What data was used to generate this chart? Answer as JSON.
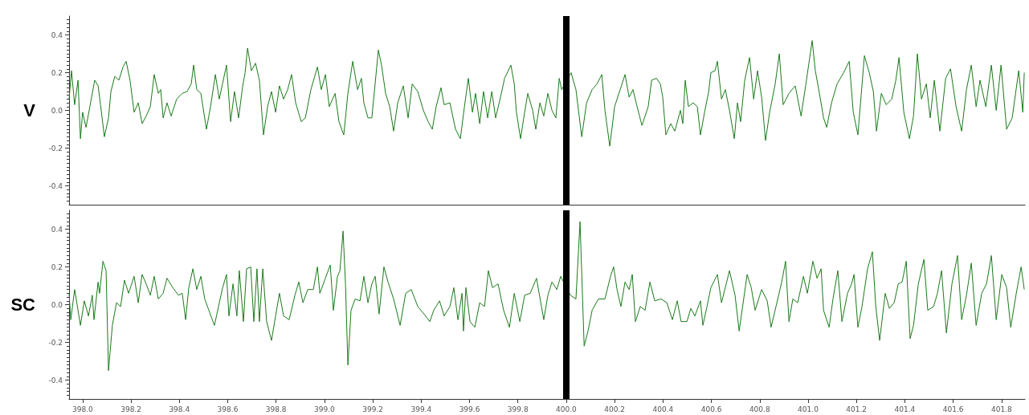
{
  "chart_data": [
    {
      "type": "line",
      "ylabel": "V",
      "tick_labels": "y",
      "xlim": [
        397.944,
        401.897
      ],
      "ylim": [
        -0.5,
        0.5
      ],
      "yticks": [
        {
          "value": -0.4,
          "label": "-0.4"
        },
        {
          "value": -0.2,
          "label": "-0.2"
        },
        {
          "value": 0,
          "label": "0.0"
        },
        {
          "value": 0.2,
          "label": "0.2"
        },
        {
          "value": 0.4,
          "label": "0.4"
        }
      ],
      "ref_lines": [
        {
          "axis": "x",
          "value": 400.0,
          "color": "#000000"
        }
      ],
      "series": [
        {
          "color": "#1a7a1a",
          "x": [
            397.944,
            397.954,
            397.967,
            397.981,
            397.991,
            398.0,
            398.014,
            398.03,
            398.05,
            398.064,
            398.074,
            398.09,
            398.107,
            398.117,
            398.133,
            398.15,
            398.167,
            398.18,
            398.196,
            398.213,
            398.23,
            398.246,
            398.263,
            398.28,
            398.296,
            398.313,
            398.323,
            398.333,
            398.349,
            398.366,
            398.389,
            398.412,
            398.432,
            398.449,
            398.459,
            398.472,
            398.489,
            398.512,
            398.529,
            398.549,
            398.565,
            398.595,
            398.612,
            398.628,
            398.645,
            398.662,
            398.672,
            398.682,
            398.698,
            398.715,
            398.731,
            398.748,
            398.765,
            398.781,
            398.798,
            398.814,
            398.831,
            398.848,
            398.864,
            398.881,
            398.904,
            398.921,
            398.944,
            398.971,
            398.987,
            399.004,
            399.02,
            399.044,
            399.06,
            399.08,
            399.097,
            399.117,
            399.137,
            399.153,
            399.163,
            399.18,
            399.196,
            399.223,
            399.236,
            399.253,
            399.27,
            399.286,
            399.303,
            399.326,
            399.346,
            399.363,
            399.386,
            399.409,
            399.429,
            399.446,
            399.462,
            399.482,
            399.495,
            399.519,
            399.542,
            399.562,
            399.579,
            399.595,
            399.612,
            399.625,
            399.642,
            399.658,
            399.675,
            399.692,
            399.708,
            399.728,
            399.745,
            399.771,
            399.785,
            399.794,
            399.811,
            399.828,
            399.841,
            399.861,
            399.874,
            399.891,
            399.907,
            399.924,
            399.941,
            399.957,
            399.971,
            399.981,
            400.02,
            400.04,
            400.064,
            400.084,
            400.107,
            400.127,
            400.147,
            400.16,
            400.18,
            400.2,
            400.223,
            400.243,
            400.26,
            400.276,
            400.293,
            400.313,
            400.339,
            400.353,
            400.373,
            400.389,
            400.399,
            400.412,
            400.432,
            400.449,
            400.472,
            400.482,
            400.492,
            400.505,
            400.525,
            400.542,
            400.555,
            400.572,
            400.589,
            400.598,
            400.615,
            400.625,
            400.642,
            400.658,
            400.675,
            400.695,
            400.708,
            400.721,
            400.738,
            400.758,
            400.775,
            400.791,
            400.808,
            400.824,
            400.841,
            400.864,
            400.881,
            400.897,
            400.921,
            400.947,
            400.971,
            400.991,
            401.017,
            401.03,
            401.047,
            401.064,
            401.077,
            401.097,
            401.12,
            401.147,
            401.17,
            401.187,
            401.206,
            401.233,
            401.253,
            401.27,
            401.283,
            401.303,
            401.323,
            401.346,
            401.363,
            401.376,
            401.396,
            401.419,
            401.436,
            401.452,
            401.469,
            401.489,
            401.505,
            401.522,
            401.545,
            401.569,
            401.589,
            401.612,
            401.635,
            401.655,
            401.675,
            401.695,
            401.711,
            401.735,
            401.758,
            401.778,
            401.798,
            401.821,
            401.844,
            401.871,
            401.888,
            401.894
          ],
          "values": [
            0.06,
            0.21,
            0.03,
            0.16,
            -0.15,
            -0.01,
            -0.09,
            0.02,
            0.16,
            0.13,
            0.03,
            -0.14,
            -0.04,
            0.1,
            0.18,
            0.16,
            0.23,
            0.26,
            0.16,
            -0.01,
            0.04,
            -0.07,
            -0.03,
            0.02,
            0.19,
            0.09,
            0.11,
            -0.04,
            0.04,
            -0.03,
            0.06,
            0.09,
            0.1,
            0.14,
            0.24,
            0.11,
            0.09,
            -0.1,
            0.02,
            0.19,
            0.06,
            0.24,
            -0.06,
            0.1,
            -0.04,
            0.13,
            0.2,
            0.33,
            0.21,
            0.25,
            0.16,
            -0.13,
            0.02,
            0.1,
            -0.01,
            0.13,
            0.06,
            0.11,
            0.19,
            0.04,
            -0.06,
            -0.04,
            0.11,
            0.23,
            0.11,
            0.19,
            0.02,
            0.09,
            -0.06,
            -0.13,
            0.09,
            0.26,
            0.11,
            0.17,
            0.04,
            -0.04,
            -0.04,
            0.32,
            0.24,
            0.09,
            0.02,
            -0.11,
            0.04,
            0.13,
            -0.04,
            0.14,
            0.1,
            0.0,
            -0.06,
            -0.1,
            0.02,
            0.12,
            0.03,
            0.04,
            -0.1,
            -0.15,
            0.02,
            0.17,
            -0.01,
            0.09,
            -0.07,
            0.1,
            -0.04,
            0.1,
            -0.04,
            0.07,
            0.17,
            0.24,
            0.14,
            -0.01,
            -0.15,
            -0.01,
            0.09,
            0.0,
            -0.1,
            0.04,
            -0.03,
            0.09,
            0.0,
            -0.04,
            0.17,
            0.11,
            0.2,
            0.11,
            -0.14,
            0.04,
            0.11,
            0.14,
            0.19,
            0.0,
            -0.19,
            0.02,
            0.11,
            0.19,
            0.07,
            0.11,
            0.02,
            -0.08,
            0.02,
            0.16,
            0.17,
            0.14,
            0.07,
            -0.13,
            -0.07,
            -0.11,
            0.0,
            -0.07,
            0.16,
            0.02,
            0.04,
            0.02,
            -0.13,
            -0.01,
            0.1,
            0.2,
            0.21,
            0.26,
            0.06,
            0.11,
            0.0,
            -0.15,
            0.04,
            -0.06,
            0.16,
            0.28,
            0.06,
            0.21,
            0.07,
            -0.16,
            -0.01,
            0.14,
            0.3,
            0.03,
            0.09,
            0.13,
            -0.03,
            0.14,
            0.37,
            0.21,
            0.09,
            -0.04,
            -0.09,
            0.04,
            0.14,
            0.2,
            0.26,
            -0.01,
            -0.13,
            0.29,
            0.2,
            0.1,
            -0.11,
            0.09,
            0.03,
            0.06,
            0.16,
            0.28,
            -0.01,
            -0.15,
            -0.03,
            0.3,
            0.06,
            0.14,
            -0.04,
            0.16,
            -0.11,
            0.17,
            0.22,
            0.02,
            -0.11,
            0.11,
            0.24,
            0.02,
            0.16,
            0.02,
            0.24,
            0.0,
            0.24,
            -0.1,
            -0.04,
            0.21,
            -0.01,
            0.2
          ]
        }
      ]
    },
    {
      "type": "line",
      "ylabel": "SC",
      "xlim": [
        397.944,
        401.897
      ],
      "ylim": [
        -0.5,
        0.5
      ],
      "xticks": [
        {
          "value": 398.0,
          "label": "398.0"
        },
        {
          "value": 398.2,
          "label": "398.2"
        },
        {
          "value": 398.4,
          "label": "398.4"
        },
        {
          "value": 398.6,
          "label": "398.6"
        },
        {
          "value": 398.8,
          "label": "398.8"
        },
        {
          "value": 399.0,
          "label": "399.0"
        },
        {
          "value": 399.2,
          "label": "399.2"
        },
        {
          "value": 399.4,
          "label": "399.4"
        },
        {
          "value": 399.6,
          "label": "399.6"
        },
        {
          "value": 399.8,
          "label": "399.8"
        },
        {
          "value": 400.0,
          "label": "400.0"
        },
        {
          "value": 400.2,
          "label": "400.2"
        },
        {
          "value": 400.4,
          "label": "400.4"
        },
        {
          "value": 400.6,
          "label": "400.6"
        },
        {
          "value": 400.8,
          "label": "400.8"
        },
        {
          "value": 401.0,
          "label": "401.0"
        },
        {
          "value": 401.2,
          "label": "401.2"
        },
        {
          "value": 401.4,
          "label": "401.4"
        },
        {
          "value": 401.6,
          "label": "401.6"
        },
        {
          "value": 401.8,
          "label": "401.8"
        }
      ],
      "yticks": [
        {
          "value": -0.4,
          "label": "-0.4"
        },
        {
          "value": -0.2,
          "label": "-0.2"
        },
        {
          "value": 0,
          "label": "0.0"
        },
        {
          "value": 0.2,
          "label": "0.2"
        },
        {
          "value": 0.4,
          "label": "0.4"
        }
      ],
      "ref_lines": [
        {
          "axis": "x",
          "value": 400.0,
          "color": "#000000"
        }
      ],
      "series": [
        {
          "color": "#1a7a1a",
          "x": [
            397.944,
            397.951,
            397.967,
            397.991,
            398.007,
            398.024,
            398.04,
            398.047,
            398.064,
            398.07,
            398.084,
            398.097,
            398.107,
            398.123,
            398.14,
            398.157,
            398.173,
            398.19,
            398.213,
            398.23,
            398.246,
            398.263,
            398.28,
            398.296,
            398.313,
            398.333,
            398.349,
            398.373,
            398.396,
            398.412,
            398.426,
            398.439,
            398.456,
            398.472,
            398.489,
            398.505,
            398.522,
            398.545,
            398.562,
            398.579,
            398.595,
            398.605,
            398.622,
            398.638,
            398.648,
            398.665,
            398.678,
            398.695,
            398.708,
            398.721,
            398.731,
            398.745,
            398.761,
            398.781,
            398.798,
            398.814,
            398.831,
            398.854,
            398.878,
            398.894,
            398.911,
            398.931,
            398.954,
            398.971,
            398.981,
            399.004,
            399.024,
            399.037,
            399.054,
            399.064,
            399.077,
            399.087,
            399.097,
            399.11,
            399.127,
            399.147,
            399.163,
            399.18,
            399.196,
            399.21,
            399.226,
            399.246,
            399.263,
            399.286,
            399.313,
            399.336,
            399.359,
            399.386,
            399.412,
            399.436,
            399.452,
            399.476,
            399.495,
            399.519,
            399.535,
            399.552,
            399.569,
            399.575,
            399.585,
            399.602,
            399.622,
            399.642,
            399.662,
            399.678,
            399.695,
            399.718,
            399.741,
            399.765,
            399.785,
            399.808,
            399.828,
            399.851,
            399.877,
            399.907,
            399.924,
            399.941,
            399.961,
            399.977,
            400.017,
            400.04,
            400.057,
            400.074,
            400.09,
            400.107,
            400.133,
            400.16,
            400.183,
            400.196,
            400.21,
            400.226,
            400.243,
            400.26,
            400.273,
            400.286,
            400.306,
            400.326,
            400.346,
            400.366,
            400.392,
            400.416,
            400.439,
            400.459,
            400.475,
            400.499,
            400.515,
            400.532,
            400.555,
            400.565,
            400.582,
            400.598,
            400.625,
            400.642,
            400.675,
            400.698,
            400.715,
            400.748,
            400.765,
            400.781,
            400.808,
            400.831,
            400.847,
            400.871,
            400.891,
            400.907,
            400.921,
            400.937,
            400.957,
            400.981,
            400.997,
            401.02,
            401.037,
            401.054,
            401.064,
            401.087,
            401.103,
            401.123,
            401.14,
            401.163,
            401.18,
            401.19,
            401.206,
            401.223,
            401.246,
            401.266,
            401.28,
            401.296,
            401.319,
            401.336,
            401.356,
            401.373,
            401.389,
            401.406,
            401.422,
            401.436,
            401.456,
            401.479,
            401.495,
            401.519,
            401.535,
            401.552,
            401.572,
            401.595,
            401.618,
            401.635,
            401.655,
            401.675,
            401.695,
            401.718,
            401.738,
            401.758,
            401.778,
            401.801,
            401.821,
            401.838,
            401.861,
            401.881,
            401.894
          ],
          "values": [
            0.06,
            -0.08,
            0.08,
            -0.11,
            0.02,
            -0.06,
            0.05,
            -0.08,
            0.12,
            0.06,
            0.23,
            0.18,
            -0.35,
            -0.11,
            0.01,
            -0.01,
            0.13,
            0.06,
            0.15,
            0.01,
            0.16,
            0.11,
            0.05,
            0.15,
            0.03,
            0.06,
            0.14,
            0.09,
            0.05,
            0.06,
            -0.08,
            0.09,
            0.19,
            0.08,
            0.15,
            0.03,
            -0.03,
            -0.11,
            -0.01,
            0.09,
            0.16,
            -0.06,
            0.11,
            -0.06,
            0.18,
            -0.09,
            0.19,
            0.2,
            -0.09,
            0.19,
            -0.09,
            0.19,
            -0.09,
            -0.19,
            -0.06,
            0.06,
            -0.06,
            -0.08,
            0.05,
            0.12,
            0.01,
            0.08,
            0.08,
            0.2,
            0.06,
            0.14,
            0.21,
            -0.03,
            0.15,
            0.18,
            0.39,
            0.11,
            -0.32,
            -0.03,
            0.03,
            0.02,
            0.15,
            0.01,
            0.11,
            0.15,
            -0.05,
            0.2,
            0.12,
            0.03,
            -0.11,
            0.06,
            0.08,
            -0.01,
            -0.05,
            -0.09,
            -0.03,
            0.02,
            -0.06,
            -0.01,
            0.09,
            -0.08,
            0.06,
            -0.14,
            0.09,
            -0.09,
            -0.12,
            0.01,
            -0.01,
            0.18,
            0.09,
            0.11,
            -0.03,
            -0.12,
            0.06,
            -0.09,
            0.05,
            0.06,
            0.14,
            -0.08,
            0.05,
            0.12,
            0.08,
            0.15,
            0.05,
            0.03,
            0.44,
            -0.22,
            -0.14,
            -0.03,
            0.03,
            0.03,
            0.15,
            0.2,
            0.08,
            -0.01,
            0.12,
            0.08,
            0.16,
            -0.09,
            -0.01,
            -0.03,
            0.12,
            0.02,
            0.03,
            0.01,
            -0.08,
            0.02,
            -0.09,
            -0.09,
            -0.02,
            -0.06,
            0.02,
            -0.11,
            -0.01,
            0.09,
            0.16,
            0.01,
            0.18,
            0.05,
            -0.14,
            0.16,
            0.09,
            -0.03,
            0.08,
            0.02,
            -0.12,
            0.01,
            0.12,
            0.23,
            -0.09,
            0.03,
            0.01,
            0.15,
            0.06,
            0.23,
            0.14,
            0.19,
            -0.03,
            -0.12,
            0.03,
            0.18,
            -0.09,
            0.06,
            0.11,
            0.16,
            -0.12,
            -0.01,
            0.19,
            0.28,
            -0.01,
            -0.19,
            0.06,
            -0.02,
            0.01,
            0.11,
            0.12,
            0.23,
            -0.18,
            -0.11,
            0.11,
            0.24,
            -0.03,
            -0.01,
            0.06,
            0.18,
            -0.15,
            0.11,
            0.26,
            -0.08,
            0.05,
            0.22,
            -0.11,
            0.06,
            0.11,
            0.26,
            -0.08,
            0.16,
            0.09,
            -0.12,
            0.06,
            0.2,
            0.08
          ]
        }
      ]
    }
  ]
}
